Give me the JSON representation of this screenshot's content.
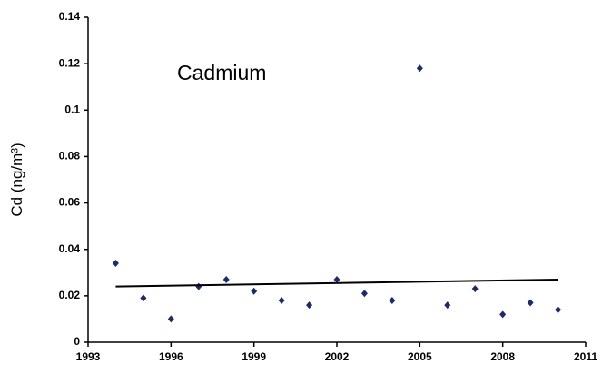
{
  "chart_data": {
    "type": "scatter",
    "title": "Cadmium",
    "y_label": "Cd (ng/m³)",
    "x": [
      1994,
      1995,
      1996,
      1997,
      1998,
      1999,
      2000,
      2001,
      2002,
      2003,
      2004,
      2005,
      2006,
      2007,
      2008,
      2009,
      2010
    ],
    "values": [
      0.034,
      0.019,
      0.01,
      0.024,
      0.027,
      0.022,
      0.018,
      0.016,
      0.027,
      0.021,
      0.018,
      0.118,
      0.016,
      0.023,
      0.012,
      0.017,
      0.014
    ],
    "color": "#1f2a6b",
    "trendline": {
      "x": [
        1994,
        2010
      ],
      "values": [
        0.024,
        0.027
      ],
      "color": "#000000"
    },
    "xlim": [
      1993,
      2011
    ],
    "xticks": [
      1993,
      1996,
      1999,
      2002,
      2005,
      2008,
      2011
    ],
    "ylim": [
      0,
      0.14
    ],
    "yticks": [
      0,
      0.02,
      0.04,
      0.06,
      0.08,
      0.1,
      0.12,
      0.14
    ],
    "grid": false
  }
}
